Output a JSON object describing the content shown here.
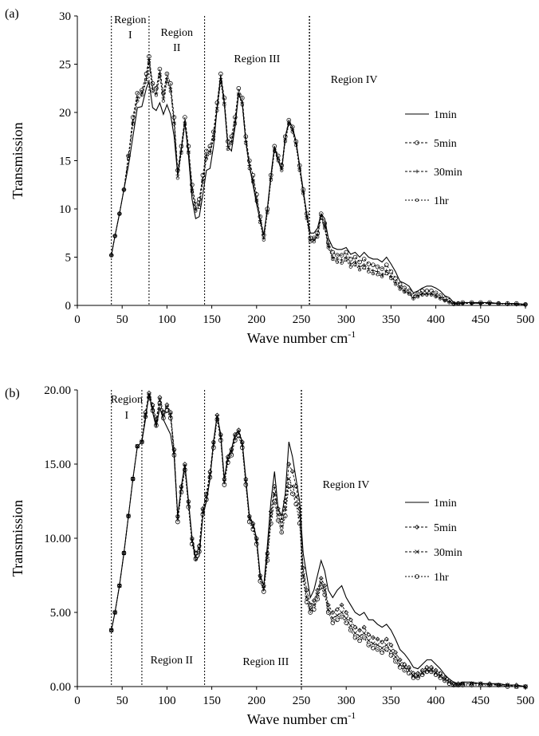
{
  "panels": [
    {
      "label": "(a)",
      "xlabel": "Wave number cm",
      "xlabel_sup": "-1",
      "ylabel": "Transmission",
      "regions": [
        {
          "label": "Region\nI",
          "x_start": 38,
          "x_end": 80
        },
        {
          "label": "Region\nII",
          "x_start": 80,
          "x_end": 142
        },
        {
          "label": "Region III",
          "x_start": 142,
          "x_end": 259
        },
        {
          "label": "Region IV",
          "x_start": 259,
          "x_end": 500
        }
      ]
    },
    {
      "label": "(b)",
      "xlabel": "Wave number cm",
      "xlabel_sup": "-1",
      "ylabel": "Transmission",
      "regions": [
        {
          "label": "Region\nI",
          "x_start": 38,
          "x_end": 72
        },
        {
          "label": "Region II",
          "x_start": 72,
          "x_end": 142
        },
        {
          "label": "Region III",
          "x_start": 142,
          "x_end": 250
        },
        {
          "label": "Region IV",
          "x_start": 250,
          "x_end": 500
        }
      ]
    }
  ],
  "chart_data": [
    {
      "type": "line",
      "title": "",
      "xlabel": "Wave number cm-1",
      "ylabel": "Transmission",
      "xlim": [
        0,
        500
      ],
      "ylim": [
        0,
        30
      ],
      "xticks": [
        0,
        50,
        100,
        150,
        200,
        250,
        300,
        350,
        400,
        450,
        500
      ],
      "yticks": [
        0,
        5,
        10,
        15,
        20,
        25,
        30
      ],
      "ytick_labels": [
        "0",
        "5",
        "10",
        "15",
        "20",
        "25",
        "30"
      ],
      "grid": false,
      "legend_position": "right",
      "region_boundaries": [
        38,
        80,
        142,
        259
      ],
      "x": [
        38,
        42,
        47,
        52,
        57,
        62,
        67,
        72,
        77,
        80,
        84,
        88,
        92,
        96,
        100,
        104,
        108,
        112,
        116,
        120,
        124,
        128,
        132,
        136,
        140,
        144,
        148,
        152,
        156,
        160,
        164,
        168,
        172,
        176,
        180,
        184,
        188,
        192,
        196,
        200,
        204,
        208,
        212,
        216,
        220,
        224,
        228,
        232,
        236,
        240,
        244,
        248,
        252,
        256,
        260,
        264,
        268,
        272,
        276,
        280,
        285,
        290,
        295,
        300,
        305,
        310,
        315,
        320,
        325,
        330,
        335,
        340,
        345,
        350,
        355,
        360,
        365,
        370,
        375,
        380,
        385,
        390,
        395,
        400,
        405,
        410,
        415,
        420,
        425,
        430,
        440,
        450,
        460,
        470,
        480,
        490,
        500
      ],
      "series": [
        {
          "name": "1min",
          "values": [
            5.2,
            7.2,
            9.5,
            12.0,
            14.5,
            17.5,
            20.5,
            20.6,
            22.5,
            23.2,
            20.5,
            20.2,
            21.0,
            19.8,
            20.8,
            19.8,
            17.5,
            13.5,
            16.2,
            19.0,
            15.5,
            11.0,
            9.0,
            9.2,
            11.5,
            14.0,
            14.2,
            16.5,
            20.5,
            23.8,
            21.0,
            16.5,
            16.0,
            18.5,
            22.0,
            21.0,
            17.0,
            14.5,
            12.5,
            10.5,
            8.8,
            7.3,
            10.0,
            13.5,
            16.5,
            15.0,
            14.0,
            17.5,
            19.0,
            18.5,
            17.0,
            14.5,
            12.0,
            9.5,
            7.5,
            7.5,
            8.0,
            9.5,
            9.0,
            7.0,
            6.0,
            5.8,
            5.8,
            6.0,
            5.3,
            5.5,
            5.0,
            5.5,
            5.0,
            4.8,
            4.8,
            4.5,
            5.0,
            4.3,
            3.5,
            2.5,
            2.3,
            2.0,
            1.3,
            1.5,
            1.8,
            2.0,
            2.0,
            1.8,
            1.5,
            1.0,
            0.8,
            0.3,
            0.2,
            0.3,
            0.3,
            0.3,
            0.3,
            0.2,
            0.2,
            0.2,
            0.1
          ]
        },
        {
          "name": "5min",
          "values": [
            5.2,
            7.2,
            9.5,
            12.0,
            15.5,
            19.5,
            22.0,
            22.3,
            24.0,
            25.8,
            23.0,
            22.5,
            24.5,
            22.0,
            24.0,
            23.0,
            19.5,
            14.0,
            16.5,
            19.5,
            16.5,
            12.5,
            10.5,
            11.0,
            13.5,
            16.0,
            16.5,
            18.0,
            21.0,
            24.0,
            21.5,
            17.0,
            17.5,
            19.5,
            22.5,
            21.5,
            17.5,
            15.0,
            13.5,
            11.5,
            9.2,
            7.3,
            10.0,
            13.5,
            16.5,
            15.5,
            14.5,
            17.5,
            19.2,
            18.5,
            17.0,
            14.5,
            12.0,
            9.5,
            7.0,
            7.0,
            7.5,
            9.5,
            8.5,
            6.5,
            5.5,
            5.2,
            5.2,
            5.5,
            4.8,
            5.0,
            4.5,
            4.8,
            4.3,
            4.2,
            4.0,
            3.8,
            4.2,
            3.5,
            2.8,
            2.2,
            1.8,
            1.5,
            1.0,
            1.2,
            1.5,
            1.5,
            1.5,
            1.3,
            1.0,
            0.7,
            0.5,
            0.2,
            0.2,
            0.3,
            0.3,
            0.3,
            0.3,
            0.2,
            0.2,
            0.2,
            0.1
          ]
        },
        {
          "name": "30min",
          "values": [
            5.2,
            7.2,
            9.5,
            12.0,
            15.5,
            19.0,
            21.5,
            22.0,
            23.5,
            25.5,
            22.5,
            22.0,
            24.0,
            21.5,
            23.5,
            22.5,
            19.0,
            13.5,
            16.0,
            19.0,
            16.0,
            12.0,
            10.0,
            10.5,
            13.0,
            15.5,
            16.0,
            17.5,
            20.5,
            23.5,
            21.0,
            16.5,
            17.0,
            19.0,
            22.0,
            21.0,
            17.0,
            14.5,
            13.0,
            11.0,
            8.8,
            7.0,
            9.8,
            13.2,
            16.2,
            15.2,
            14.2,
            17.2,
            19.0,
            18.2,
            16.8,
            14.2,
            11.8,
            9.2,
            6.8,
            6.8,
            7.3,
            9.3,
            8.2,
            6.2,
            5.0,
            4.8,
            4.7,
            5.0,
            4.3,
            4.5,
            4.0,
            4.2,
            3.8,
            3.6,
            3.5,
            3.2,
            3.6,
            3.0,
            2.4,
            1.9,
            1.5,
            1.3,
            0.8,
            1.0,
            1.2,
            1.2,
            1.2,
            1.0,
            0.8,
            0.5,
            0.4,
            0.2,
            0.2,
            0.2,
            0.2,
            0.2,
            0.2,
            0.2,
            0.2,
            0.1,
            0.1
          ]
        },
        {
          "name": "1hr",
          "values": [
            5.2,
            7.2,
            9.5,
            12.0,
            15.2,
            18.8,
            21.2,
            21.8,
            23.2,
            25.2,
            22.2,
            21.8,
            23.8,
            21.2,
            23.2,
            22.2,
            18.8,
            13.2,
            15.8,
            18.8,
            15.8,
            11.8,
            9.8,
            10.2,
            12.8,
            15.2,
            15.8,
            17.2,
            20.2,
            23.2,
            20.8,
            16.2,
            16.8,
            18.8,
            21.8,
            20.8,
            16.8,
            14.2,
            12.8,
            10.8,
            8.6,
            6.8,
            9.6,
            13.0,
            16.0,
            15.0,
            14.0,
            17.0,
            18.8,
            18.0,
            16.6,
            14.0,
            11.6,
            9.0,
            6.6,
            6.6,
            7.1,
            9.1,
            8.0,
            6.0,
            4.8,
            4.5,
            4.4,
            4.7,
            4.0,
            4.2,
            3.7,
            3.9,
            3.5,
            3.3,
            3.2,
            3.0,
            3.3,
            2.8,
            2.2,
            1.7,
            1.4,
            1.2,
            0.7,
            0.9,
            1.1,
            1.1,
            1.1,
            0.9,
            0.7,
            0.5,
            0.3,
            0.1,
            0.2,
            0.2,
            0.2,
            0.2,
            0.2,
            0.2,
            0.1,
            0.1,
            0.1
          ]
        }
      ]
    },
    {
      "type": "line",
      "title": "",
      "xlabel": "Wave number cm-1",
      "ylabel": "Transmission",
      "xlim": [
        0,
        500
      ],
      "ylim": [
        0,
        20
      ],
      "xticks": [
        0,
        50,
        100,
        150,
        200,
        250,
        300,
        350,
        400,
        450,
        500
      ],
      "yticks": [
        0,
        5,
        10,
        15,
        20
      ],
      "ytick_labels": [
        "0.00",
        "5.00",
        "10.00",
        "15.00",
        "20.00"
      ],
      "grid": false,
      "legend_position": "right",
      "region_boundaries": [
        38,
        72,
        142,
        250
      ],
      "x": [
        38,
        42,
        47,
        52,
        57,
        62,
        67,
        72,
        76,
        80,
        84,
        88,
        92,
        96,
        100,
        104,
        108,
        112,
        116,
        120,
        124,
        128,
        132,
        136,
        140,
        144,
        148,
        152,
        156,
        160,
        164,
        168,
        172,
        176,
        180,
        184,
        188,
        192,
        196,
        200,
        204,
        208,
        212,
        216,
        220,
        224,
        228,
        232,
        236,
        240,
        244,
        248,
        252,
        256,
        260,
        264,
        268,
        272,
        276,
        280,
        285,
        290,
        295,
        300,
        305,
        310,
        315,
        320,
        325,
        330,
        335,
        340,
        345,
        350,
        355,
        360,
        365,
        370,
        375,
        380,
        385,
        390,
        395,
        400,
        405,
        410,
        415,
        420,
        425,
        430,
        440,
        450,
        460,
        470,
        480,
        490,
        500
      ],
      "series": [
        {
          "name": "1min",
          "values": [
            3.8,
            5.0,
            6.8,
            9.0,
            11.5,
            14.0,
            16.2,
            16.5,
            18.0,
            19.8,
            18.5,
            17.5,
            18.8,
            18.0,
            17.5,
            17.0,
            15.5,
            11.5,
            13.5,
            15.0,
            12.5,
            10.0,
            8.5,
            8.8,
            11.5,
            12.5,
            14.0,
            16.5,
            18.3,
            17.0,
            14.0,
            15.5,
            16.0,
            17.0,
            17.2,
            16.5,
            14.0,
            11.5,
            11.0,
            10.0,
            7.5,
            6.8,
            9.5,
            12.5,
            14.5,
            12.0,
            11.5,
            13.0,
            16.5,
            15.5,
            14.0,
            12.5,
            9.0,
            7.5,
            6.0,
            6.5,
            7.5,
            8.5,
            7.8,
            6.5,
            6.0,
            6.5,
            6.8,
            6.0,
            5.5,
            5.0,
            4.8,
            5.0,
            4.5,
            4.5,
            4.2,
            4.0,
            4.2,
            3.8,
            3.2,
            2.5,
            2.2,
            1.8,
            1.3,
            1.2,
            1.5,
            1.8,
            1.8,
            1.5,
            1.2,
            0.8,
            0.5,
            0.3,
            0.2,
            0.3,
            0.3,
            0.2,
            0.2,
            0.2,
            0.1,
            0.1,
            0.0
          ]
        },
        {
          "name": "5min",
          "values": [
            3.8,
            5.0,
            6.8,
            9.0,
            11.5,
            14.0,
            16.2,
            16.5,
            18.5,
            19.8,
            19.0,
            18.0,
            19.5,
            18.5,
            19.0,
            18.5,
            16.0,
            11.5,
            13.5,
            15.0,
            12.5,
            10.0,
            9.0,
            9.5,
            12.0,
            13.0,
            14.5,
            16.5,
            18.3,
            17.0,
            14.0,
            15.5,
            16.0,
            17.0,
            17.3,
            16.5,
            14.0,
            11.5,
            11.0,
            10.0,
            7.5,
            6.8,
            9.0,
            11.8,
            13.5,
            12.0,
            11.2,
            12.5,
            15.0,
            14.5,
            13.5,
            12.0,
            8.0,
            6.5,
            5.5,
            5.8,
            6.5,
            7.3,
            6.8,
            5.5,
            5.0,
            5.2,
            5.5,
            5.0,
            4.5,
            4.0,
            3.8,
            4.0,
            3.5,
            3.3,
            3.2,
            3.0,
            3.2,
            2.8,
            2.3,
            1.8,
            1.5,
            1.3,
            0.9,
            0.9,
            1.1,
            1.3,
            1.3,
            1.1,
            0.9,
            0.6,
            0.4,
            0.2,
            0.2,
            0.2,
            0.2,
            0.2,
            0.2,
            0.1,
            0.1,
            0.1,
            0.0
          ]
        },
        {
          "name": "30min",
          "values": [
            3.8,
            5.0,
            6.8,
            9.0,
            11.5,
            14.0,
            16.2,
            16.5,
            18.3,
            19.6,
            18.8,
            17.8,
            19.3,
            18.3,
            18.8,
            18.3,
            15.8,
            11.3,
            13.3,
            14.8,
            12.3,
            9.8,
            8.8,
            9.3,
            11.8,
            12.8,
            14.3,
            16.3,
            18.2,
            16.8,
            13.8,
            15.3,
            15.8,
            16.8,
            17.1,
            16.3,
            13.8,
            11.3,
            10.8,
            9.8,
            7.3,
            6.6,
            8.8,
            11.5,
            13.0,
            11.6,
            10.8,
            12.0,
            14.0,
            13.5,
            12.8,
            11.5,
            7.5,
            6.0,
            5.2,
            5.5,
            6.2,
            7.0,
            6.5,
            5.2,
            4.6,
            4.8,
            5.0,
            4.6,
            4.1,
            3.6,
            3.4,
            3.6,
            3.1,
            2.9,
            2.8,
            2.6,
            2.8,
            2.4,
            2.0,
            1.5,
            1.3,
            1.1,
            0.7,
            0.7,
            0.9,
            1.1,
            1.1,
            0.9,
            0.7,
            0.5,
            0.3,
            0.1,
            0.1,
            0.2,
            0.2,
            0.2,
            0.1,
            0.1,
            0.1,
            0.0,
            0.0
          ]
        },
        {
          "name": "1hr",
          "values": [
            3.8,
            5.0,
            6.8,
            9.0,
            11.5,
            14.0,
            16.2,
            16.5,
            18.2,
            19.5,
            18.6,
            17.6,
            19.1,
            18.1,
            18.6,
            18.1,
            15.6,
            11.1,
            13.1,
            14.6,
            12.1,
            9.6,
            8.6,
            9.1,
            11.6,
            12.6,
            14.1,
            16.1,
            18.0,
            16.6,
            13.6,
            15.1,
            15.6,
            16.6,
            16.9,
            16.1,
            13.6,
            11.1,
            10.6,
            9.6,
            7.1,
            6.4,
            8.5,
            11.0,
            12.5,
            11.2,
            10.4,
            11.5,
            13.5,
            13.0,
            12.3,
            11.0,
            7.2,
            5.7,
            5.0,
            5.2,
            5.9,
            6.7,
            6.2,
            5.0,
            4.3,
            4.5,
            4.7,
            4.3,
            3.8,
            3.3,
            3.1,
            3.3,
            2.8,
            2.6,
            2.5,
            2.3,
            2.5,
            2.1,
            1.7,
            1.3,
            1.1,
            0.9,
            0.6,
            0.6,
            0.8,
            1.0,
            1.0,
            0.8,
            0.6,
            0.4,
            0.2,
            0.1,
            0.1,
            0.1,
            0.1,
            0.1,
            0.1,
            0.1,
            0.0,
            0.0,
            0.0
          ]
        }
      ]
    }
  ]
}
